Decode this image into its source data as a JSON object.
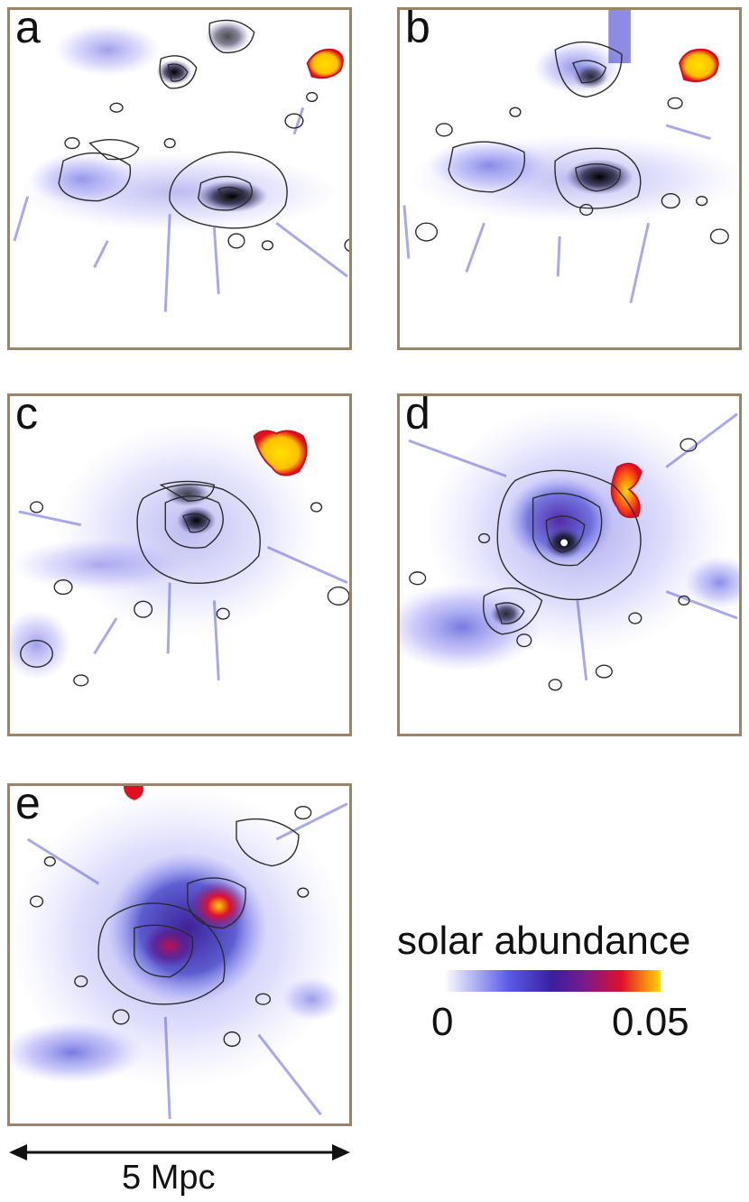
{
  "panels": [
    {
      "id": "a",
      "label": "a"
    },
    {
      "id": "b",
      "label": "b"
    },
    {
      "id": "c",
      "label": "c"
    },
    {
      "id": "d",
      "label": "d"
    },
    {
      "id": "e",
      "label": "e"
    }
  ],
  "colorbar": {
    "title": "solar abundance",
    "min_label": "0",
    "max_label": "0.05",
    "colors": [
      "#ffffff",
      "#5a5ae6",
      "#3a1fa0",
      "#7a1a8a",
      "#e0102a",
      "#ffd800"
    ]
  },
  "scale_bar": {
    "label": "5 Mpc"
  },
  "colors": {
    "frame": "#9b8468",
    "contour": "#2a2a2a",
    "low_metal": "#6b6bff",
    "high_metal": "#ffe000"
  }
}
